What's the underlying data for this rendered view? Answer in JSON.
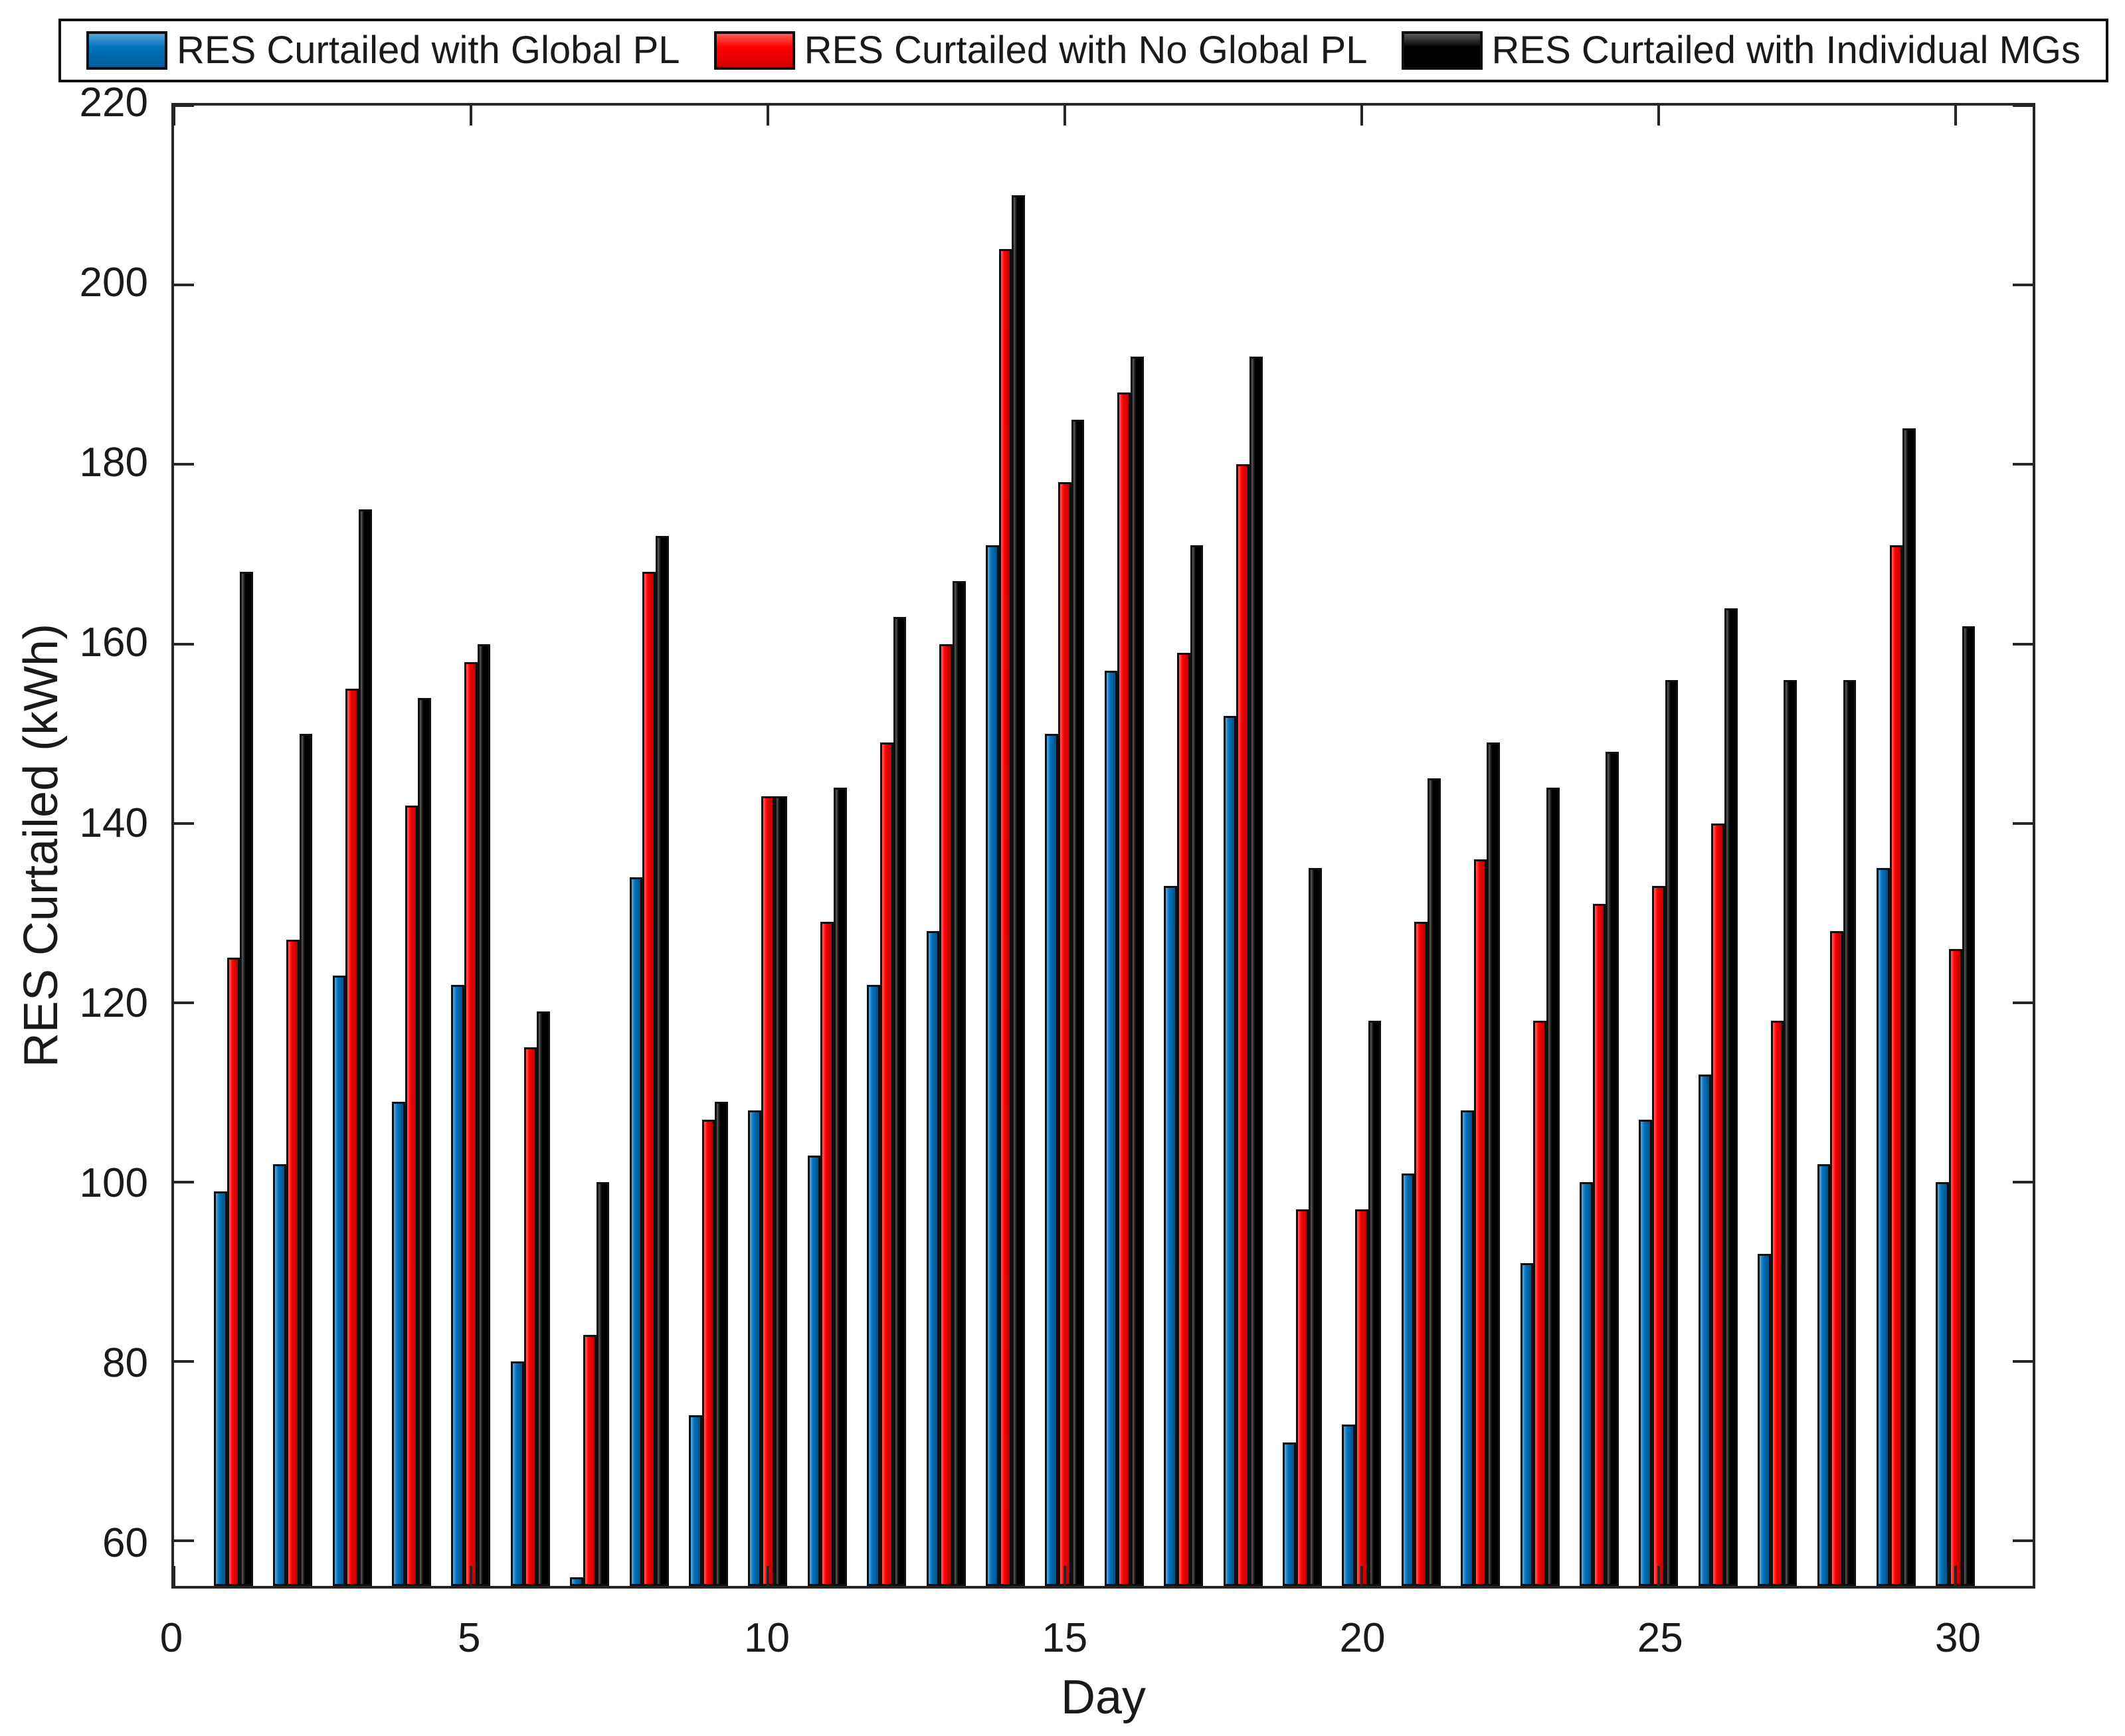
{
  "chart_data": {
    "type": "bar",
    "title": "",
    "xlabel": "Day",
    "ylabel": "RES Curtailed (kWh)",
    "categories": [
      1,
      2,
      3,
      4,
      5,
      6,
      7,
      8,
      9,
      10,
      11,
      12,
      13,
      14,
      15,
      16,
      17,
      18,
      19,
      20,
      21,
      22,
      23,
      24,
      25,
      26,
      27,
      28,
      29,
      30
    ],
    "series": [
      {
        "name": "RES Curtailed with Global PL",
        "color": "#0072BD",
        "values": [
          99,
          102,
          123,
          109,
          122,
          80,
          56,
          134,
          74,
          108,
          103,
          122,
          128,
          171,
          150,
          157,
          133,
          152,
          71,
          73,
          101,
          108,
          91,
          100,
          107,
          112,
          92,
          102,
          135,
          100
        ]
      },
      {
        "name": "RES Curtailed with No Global PL",
        "color": "#FF0000",
        "values": [
          125,
          127,
          155,
          142,
          158,
          115,
          83,
          168,
          107,
          143,
          129,
          149,
          160,
          204,
          178,
          188,
          159,
          180,
          97,
          97,
          129,
          136,
          118,
          131,
          133,
          140,
          118,
          128,
          171,
          126
        ]
      },
      {
        "name": "RES Curtailed with Individual MGs",
        "color": "#000000",
        "values": [
          168,
          150,
          175,
          154,
          160,
          119,
          100,
          172,
          109,
          143,
          144,
          163,
          167,
          210,
          185,
          192,
          171,
          192,
          135,
          118,
          145,
          149,
          144,
          148,
          156,
          164,
          156,
          156,
          184,
          162
        ]
      }
    ],
    "ylim": [
      55,
      220
    ],
    "xlim": [
      0,
      31.3
    ],
    "yticks": [
      60,
      80,
      100,
      120,
      140,
      160,
      180,
      200,
      220
    ],
    "xticks": [
      0,
      5,
      10,
      15,
      20,
      25,
      30
    ],
    "grid": false,
    "legend_position": "top",
    "bar_width_day_units": 0.22
  }
}
